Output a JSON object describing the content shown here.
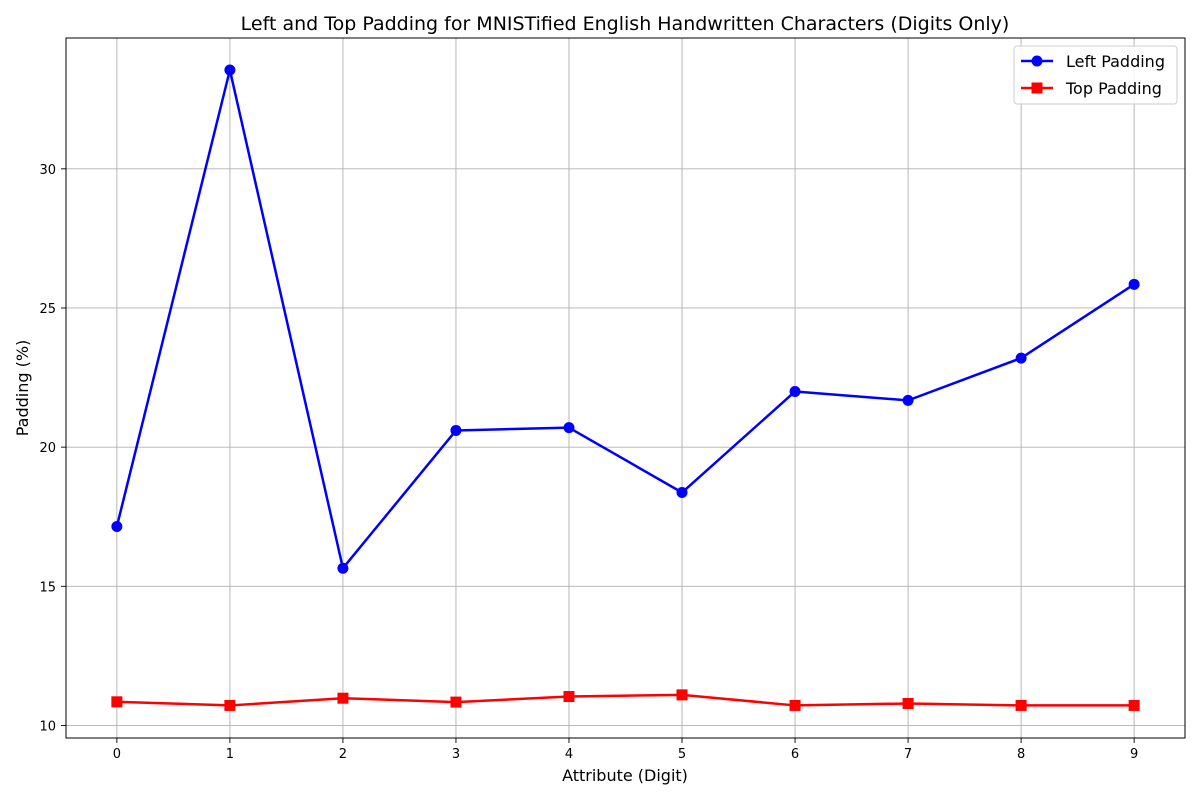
{
  "chart_data": {
    "type": "line",
    "title": "Left and Top Padding for MNISTified English Handwritten Characters (Digits Only)",
    "xlabel": "Attribute (Digit)",
    "ylabel": "Padding (%)",
    "x": [
      0,
      1,
      2,
      3,
      4,
      5,
      6,
      7,
      8,
      9
    ],
    "xticks": [
      "0",
      "1",
      "2",
      "3",
      "4",
      "5",
      "6",
      "7",
      "8",
      "9"
    ],
    "xlim": [
      -0.45,
      9.45
    ],
    "ylim": [
      9.55,
      34.7
    ],
    "yticks": [
      "10",
      "15",
      "20",
      "25",
      "30"
    ],
    "grid": true,
    "legend_position": "top-right",
    "series": [
      {
        "name": "Left Padding",
        "color": "#0000ff",
        "marker": "circle",
        "values": [
          17.15,
          33.55,
          15.65,
          20.6,
          20.7,
          18.37,
          22.0,
          21.68,
          23.2,
          25.85
        ]
      },
      {
        "name": "Top Padding",
        "color": "#ff0000",
        "marker": "square",
        "values": [
          10.85,
          10.72,
          10.98,
          10.84,
          11.04,
          11.1,
          10.72,
          10.79,
          10.72,
          10.72
        ]
      }
    ]
  }
}
